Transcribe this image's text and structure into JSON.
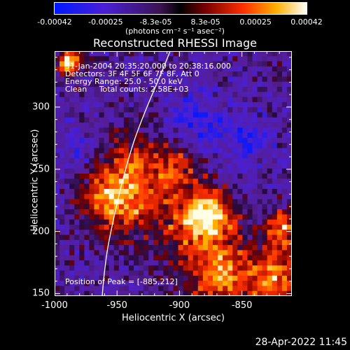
{
  "chart_data": {
    "type": "heatmap",
    "title": "Reconstructed RHESSI Image",
    "xlabel": "Heliocentric X (arcsec)",
    "ylabel": "Heliocentric Y (arcsec)",
    "xlim": [
      -1000,
      -810
    ],
    "ylim": [
      148,
      345
    ],
    "x_ticks": [
      "-1000",
      "-950",
      "-900",
      "-850"
    ],
    "x_tick_values": [
      -1000,
      -950,
      -900,
      -850
    ],
    "y_ticks": [
      "150",
      "200",
      "250",
      "300"
    ],
    "y_tick_values": [
      150,
      200,
      250,
      300
    ],
    "colorbar": {
      "ticks": [
        "-0.00042",
        "-0.00025",
        "-8.3e-05",
        "8.3e-05",
        "0.00025",
        "0.00042"
      ],
      "tick_values": [
        -0.00042,
        -0.00025,
        -8.3e-05,
        8.3e-05,
        0.00025,
        0.00042
      ],
      "units": "(photons cm⁻² s⁻¹ asec⁻²)",
      "range": [
        -0.00042,
        0.00042
      ]
    },
    "annotations": [
      "31-Jan-2004 20:35:20.000 to 20:38:16.000",
      "Detectors: 3F 4F 5F 6F 7F 8F, Att 0",
      "Energy Range: 25.0 - 50.0 keV",
      "Clean     Total counts: 2.58E+03"
    ],
    "peak_label": "Position of Peak = [-885,212]",
    "peak": [
      -885,
      212
    ],
    "grid": false
  },
  "footer": {
    "date": "28-Apr-2022 11:45"
  },
  "colors": {
    "background": "#000000",
    "text": "#ffffff"
  }
}
